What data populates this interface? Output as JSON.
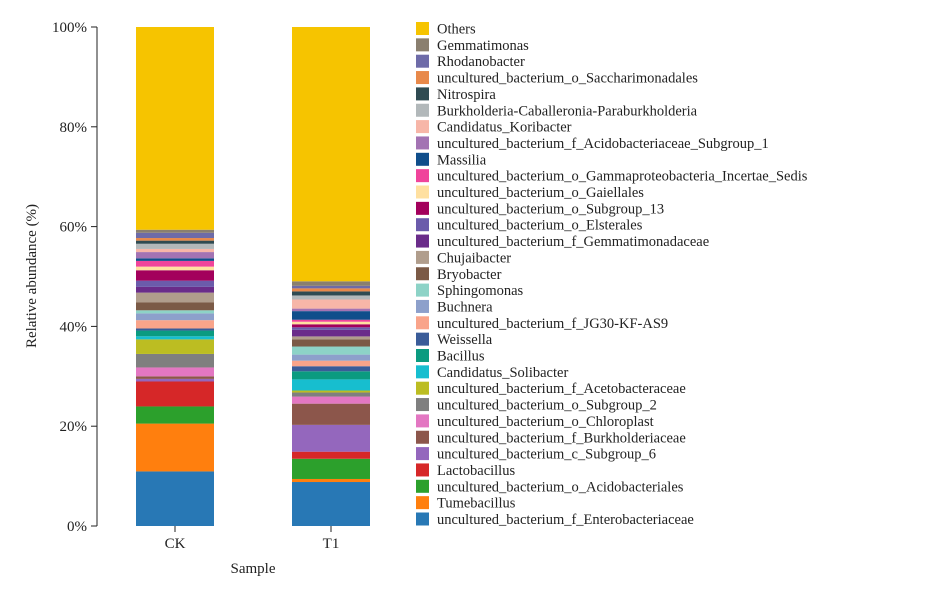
{
  "chart_data": {
    "type": "bar",
    "stacked": true,
    "percent": true,
    "title": "",
    "xlabel": "Sample",
    "ylabel": "Relative abundance (%)",
    "ylim": [
      0,
      100
    ],
    "yticks": [
      0,
      20,
      40,
      60,
      80,
      100
    ],
    "ytick_labels": [
      "0%",
      "20%",
      "40%",
      "60%",
      "80%",
      "100%"
    ],
    "categories": [
      "CK",
      "T1"
    ],
    "legend_position": "right",
    "grid": false,
    "series": [
      {
        "name": "uncultured_bacterium_f_Enterobacteriaceae",
        "color": "#2878b5",
        "values": [
          10.5,
          8.7
        ]
      },
      {
        "name": "Tumebacillus",
        "color": "#ff7f0e",
        "values": [
          9.2,
          0.6
        ]
      },
      {
        "name": "uncultured_bacterium_o_Acidobacteriales",
        "color": "#2ca02c",
        "values": [
          3.3,
          4.0
        ]
      },
      {
        "name": "Lactobacillus",
        "color": "#d62728",
        "values": [
          4.8,
          1.4
        ]
      },
      {
        "name": "uncultured_bacterium_c_Subgroup_6",
        "color": "#9467bd",
        "values": [
          0.5,
          5.3
        ]
      },
      {
        "name": "uncultured_bacterium_f_Burkholderiaceae",
        "color": "#8c564b",
        "values": [
          0.5,
          4.2
        ]
      },
      {
        "name": "uncultured_bacterium_o_Chloroplast",
        "color": "#e377c2",
        "values": [
          1.7,
          1.4
        ]
      },
      {
        "name": "uncultured_bacterium_o_Subgroup_2",
        "color": "#7f7f7f",
        "values": [
          2.6,
          0.8
        ]
      },
      {
        "name": "uncultured_bacterium_f_Acetobacteraceae",
        "color": "#bcbd22",
        "values": [
          2.8,
          0.4
        ]
      },
      {
        "name": "Candidatus_Solibacter",
        "color": "#17becf",
        "values": [
          0.6,
          2.2
        ]
      },
      {
        "name": "Bacillus",
        "color": "#0b9b80",
        "values": [
          1.1,
          1.6
        ]
      },
      {
        "name": "Weissella",
        "color": "#3a5c99",
        "values": [
          0.4,
          1.0
        ]
      },
      {
        "name": "uncultured_bacterium_f_JG30-KF-AS9",
        "color": "#f9a48a",
        "values": [
          1.6,
          1.1
        ]
      },
      {
        "name": "Buchnera",
        "color": "#8da0cb",
        "values": [
          1.3,
          1.2
        ]
      },
      {
        "name": "Sphingomonas",
        "color": "#8dd3c7",
        "values": [
          0.6,
          1.6
        ]
      },
      {
        "name": "Bryobacter",
        "color": "#7b5a46",
        "values": [
          1.5,
          1.4
        ]
      },
      {
        "name": "Chujaibacter",
        "color": "#b09d8c",
        "values": [
          1.9,
          0.6
        ]
      },
      {
        "name": "uncultured_bacterium_f_Gemmatimonadaceae",
        "color": "#6a2c8a",
        "values": [
          1.1,
          1.3
        ]
      },
      {
        "name": "uncultured_bacterium_o_Elsterales",
        "color": "#6b5bab",
        "values": [
          1.2,
          0.5
        ]
      },
      {
        "name": "uncultured_bacterium_o_Subgroup_13",
        "color": "#a3005c",
        "values": [
          2.0,
          0.6
        ]
      },
      {
        "name": "uncultured_bacterium_o_Gaiellales",
        "color": "#ffe0a0",
        "values": [
          0.7,
          0.5
        ]
      },
      {
        "name": "uncultured_bacterium_o_Gammaproteobacteria_Incertae_Sedis",
        "color": "#f0449b",
        "values": [
          1.1,
          0.4
        ]
      },
      {
        "name": "Massilia",
        "color": "#104e8b",
        "values": [
          0.5,
          1.7
        ]
      },
      {
        "name": "uncultured_bacterium_f_Acidobacteriaceae_Subgroup_1",
        "color": "#a373b3",
        "values": [
          1.2,
          0.5
        ]
      },
      {
        "name": "Candidatus_Koribacter",
        "color": "#f7b6a8",
        "values": [
          0.6,
          1.8
        ]
      },
      {
        "name": "Burkholderia-Caballeronia-Paraburkholderia",
        "color": "#b2b8ba",
        "values": [
          1.0,
          0.8
        ]
      },
      {
        "name": "Nitrospira",
        "color": "#2f4b52",
        "values": [
          0.6,
          0.8
        ]
      },
      {
        "name": "uncultured_bacterium_o_Saccharimonadales",
        "color": "#e8894a",
        "values": [
          0.5,
          0.6
        ]
      },
      {
        "name": "Rhodanobacter",
        "color": "#6e6ba8",
        "values": [
          1.0,
          0.5
        ]
      },
      {
        "name": "Gemmatimonas",
        "color": "#8a7f6f",
        "values": [
          0.6,
          0.9
        ]
      },
      {
        "name": "Others",
        "color": "#f6c400",
        "values": [
          39.0,
          50.3
        ]
      }
    ]
  }
}
